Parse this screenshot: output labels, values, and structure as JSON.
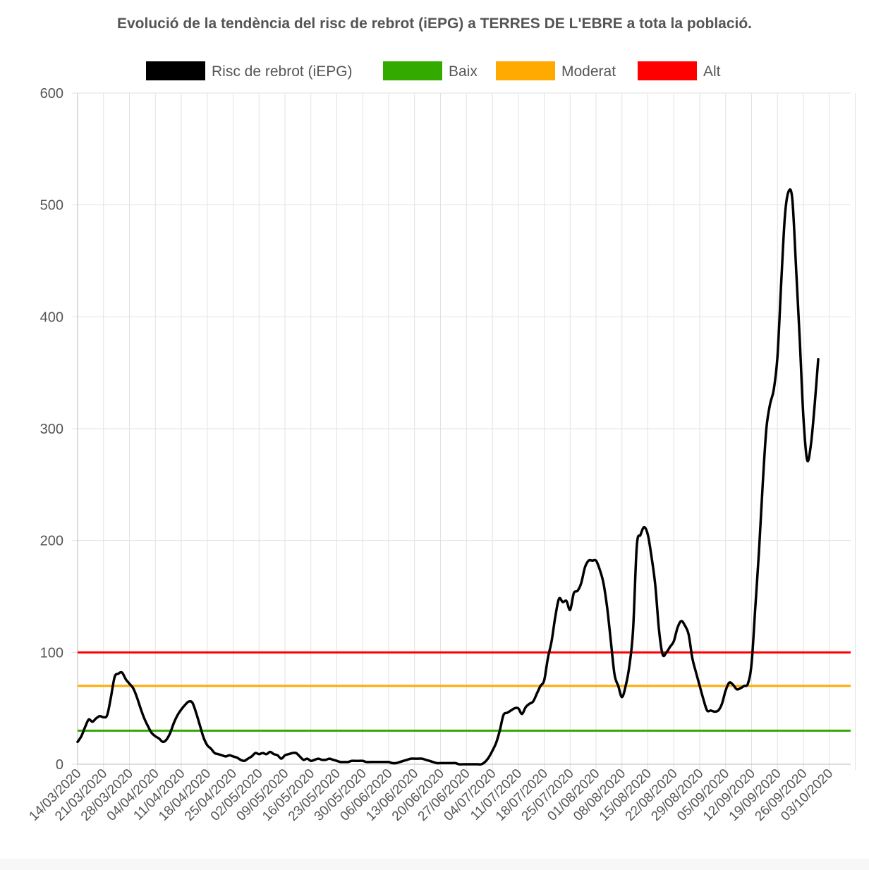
{
  "title": "Evolució de la tendència del risc de rebrot (iEPG) a TERRES DE L'EBRE a tota la població.",
  "legend": [
    {
      "label": "Risc de rebrot (iEPG)",
      "color": "#000000"
    },
    {
      "label": "Baix",
      "color": "#33aa00"
    },
    {
      "label": "Moderat",
      "color": "#ffaa00"
    },
    {
      "label": "Alt",
      "color": "#ff0000"
    }
  ],
  "chart_data": {
    "type": "line",
    "title": "Evolució de la tendència del risc de rebrot (iEPG) a TERRES DE L'EBRE a tota la població.",
    "xlabel": "",
    "ylabel": "",
    "ylim": [
      0,
      600
    ],
    "yticks": [
      0,
      100,
      200,
      300,
      400,
      500,
      600
    ],
    "grid": true,
    "legend_position": "top",
    "x_range": [
      "14/03/2020",
      "13/10/2020"
    ],
    "x_tick_labels": [
      "14/03/2020",
      "21/03/2020",
      "28/03/2020",
      "04/04/2020",
      "11/04/2020",
      "18/04/2020",
      "25/04/2020",
      "02/05/2020",
      "09/05/2020",
      "16/05/2020",
      "23/05/2020",
      "30/05/2020",
      "06/06/2020",
      "13/06/2020",
      "20/06/2020",
      "27/06/2020",
      "04/07/2020",
      "11/07/2020",
      "18/07/2020",
      "25/07/2020",
      "01/08/2020",
      "08/08/2020",
      "15/08/2020",
      "22/08/2020",
      "29/08/2020",
      "05/09/2020",
      "12/09/2020",
      "19/09/2020",
      "26/09/2020",
      "03/10/2020"
    ],
    "series": [
      {
        "name": "Risc de rebrot (iEPG)",
        "color": "#000000",
        "points": [
          [
            "14/03/2020",
            20
          ],
          [
            "15/03/2020",
            25
          ],
          [
            "16/03/2020",
            33
          ],
          [
            "17/03/2020",
            40
          ],
          [
            "18/03/2020",
            38
          ],
          [
            "19/03/2020",
            41
          ],
          [
            "20/03/2020",
            43
          ],
          [
            "21/03/2020",
            42
          ],
          [
            "22/03/2020",
            44
          ],
          [
            "23/03/2020",
            60
          ],
          [
            "24/03/2020",
            78
          ],
          [
            "25/03/2020",
            81
          ],
          [
            "26/03/2020",
            82
          ],
          [
            "27/03/2020",
            76
          ],
          [
            "28/03/2020",
            72
          ],
          [
            "29/03/2020",
            68
          ],
          [
            "30/03/2020",
            60
          ],
          [
            "31/03/2020",
            50
          ],
          [
            "01/04/2020",
            41
          ],
          [
            "02/04/2020",
            34
          ],
          [
            "03/04/2020",
            28
          ],
          [
            "04/04/2020",
            25
          ],
          [
            "05/04/2020",
            23
          ],
          [
            "06/04/2020",
            20
          ],
          [
            "07/04/2020",
            22
          ],
          [
            "08/04/2020",
            28
          ],
          [
            "09/04/2020",
            37
          ],
          [
            "10/04/2020",
            44
          ],
          [
            "11/04/2020",
            49
          ],
          [
            "12/04/2020",
            53
          ],
          [
            "13/04/2020",
            56
          ],
          [
            "14/04/2020",
            55
          ],
          [
            "15/04/2020",
            46
          ],
          [
            "16/04/2020",
            35
          ],
          [
            "17/04/2020",
            24
          ],
          [
            "18/04/2020",
            17
          ],
          [
            "19/04/2020",
            14
          ],
          [
            "20/04/2020",
            10
          ],
          [
            "21/04/2020",
            9
          ],
          [
            "22/04/2020",
            8
          ],
          [
            "23/04/2020",
            7
          ],
          [
            "24/04/2020",
            8
          ],
          [
            "25/04/2020",
            7
          ],
          [
            "26/04/2020",
            6
          ],
          [
            "27/04/2020",
            4
          ],
          [
            "28/04/2020",
            3
          ],
          [
            "29/04/2020",
            5
          ],
          [
            "30/04/2020",
            7
          ],
          [
            "01/05/2020",
            10
          ],
          [
            "02/05/2020",
            9
          ],
          [
            "03/05/2020",
            10
          ],
          [
            "04/05/2020",
            9
          ],
          [
            "05/05/2020",
            11
          ],
          [
            "06/05/2020",
            9
          ],
          [
            "07/05/2020",
            8
          ],
          [
            "08/05/2020",
            5
          ],
          [
            "09/05/2020",
            8
          ],
          [
            "10/05/2020",
            9
          ],
          [
            "11/05/2020",
            10
          ],
          [
            "12/05/2020",
            10
          ],
          [
            "13/05/2020",
            7
          ],
          [
            "14/05/2020",
            4
          ],
          [
            "15/05/2020",
            5
          ],
          [
            "16/05/2020",
            3
          ],
          [
            "17/05/2020",
            4
          ],
          [
            "18/05/2020",
            5
          ],
          [
            "19/05/2020",
            4
          ],
          [
            "20/05/2020",
            4
          ],
          [
            "21/05/2020",
            5
          ],
          [
            "22/05/2020",
            4
          ],
          [
            "23/05/2020",
            3
          ],
          [
            "24/05/2020",
            2
          ],
          [
            "25/05/2020",
            2
          ],
          [
            "26/05/2020",
            2
          ],
          [
            "27/05/2020",
            3
          ],
          [
            "28/05/2020",
            3
          ],
          [
            "29/05/2020",
            3
          ],
          [
            "30/05/2020",
            3
          ],
          [
            "31/05/2020",
            2
          ],
          [
            "01/06/2020",
            2
          ],
          [
            "02/06/2020",
            2
          ],
          [
            "03/06/2020",
            2
          ],
          [
            "04/06/2020",
            2
          ],
          [
            "05/06/2020",
            2
          ],
          [
            "06/06/2020",
            2
          ],
          [
            "07/06/2020",
            1
          ],
          [
            "08/06/2020",
            1
          ],
          [
            "09/06/2020",
            2
          ],
          [
            "10/06/2020",
            3
          ],
          [
            "11/06/2020",
            4
          ],
          [
            "12/06/2020",
            5
          ],
          [
            "13/06/2020",
            5
          ],
          [
            "14/06/2020",
            5
          ],
          [
            "15/06/2020",
            5
          ],
          [
            "16/06/2020",
            4
          ],
          [
            "17/06/2020",
            3
          ],
          [
            "18/06/2020",
            2
          ],
          [
            "19/06/2020",
            1
          ],
          [
            "20/06/2020",
            1
          ],
          [
            "21/06/2020",
            1
          ],
          [
            "22/06/2020",
            1
          ],
          [
            "23/06/2020",
            1
          ],
          [
            "24/06/2020",
            1
          ],
          [
            "25/06/2020",
            0
          ],
          [
            "26/06/2020",
            0
          ],
          [
            "27/06/2020",
            0
          ],
          [
            "28/06/2020",
            0
          ],
          [
            "29/06/2020",
            0
          ],
          [
            "30/06/2020",
            0
          ],
          [
            "01/07/2020",
            0
          ],
          [
            "02/07/2020",
            2
          ],
          [
            "03/07/2020",
            6
          ],
          [
            "04/07/2020",
            12
          ],
          [
            "05/07/2020",
            19
          ],
          [
            "06/07/2020",
            30
          ],
          [
            "07/07/2020",
            44
          ],
          [
            "08/07/2020",
            46
          ],
          [
            "09/07/2020",
            48
          ],
          [
            "10/07/2020",
            50
          ],
          [
            "11/07/2020",
            50
          ],
          [
            "12/07/2020",
            45
          ],
          [
            "13/07/2020",
            51
          ],
          [
            "14/07/2020",
            54
          ],
          [
            "15/07/2020",
            56
          ],
          [
            "16/07/2020",
            63
          ],
          [
            "17/07/2020",
            70
          ],
          [
            "18/07/2020",
            75
          ],
          [
            "19/07/2020",
            95
          ],
          [
            "20/07/2020",
            110
          ],
          [
            "21/07/2020",
            132
          ],
          [
            "22/07/2020",
            148
          ],
          [
            "23/07/2020",
            145
          ],
          [
            "24/07/2020",
            146
          ],
          [
            "25/07/2020",
            138
          ],
          [
            "26/07/2020",
            153
          ],
          [
            "27/07/2020",
            155
          ],
          [
            "28/07/2020",
            162
          ],
          [
            "29/07/2020",
            176
          ],
          [
            "30/07/2020",
            182
          ],
          [
            "31/07/2020",
            182
          ],
          [
            "01/08/2020",
            182
          ],
          [
            "02/08/2020",
            174
          ],
          [
            "03/08/2020",
            162
          ],
          [
            "04/08/2020",
            140
          ],
          [
            "05/08/2020",
            110
          ],
          [
            "06/08/2020",
            80
          ],
          [
            "07/08/2020",
            70
          ],
          [
            "08/08/2020",
            60
          ],
          [
            "09/08/2020",
            70
          ],
          [
            "10/08/2020",
            88
          ],
          [
            "11/08/2020",
            120
          ],
          [
            "12/08/2020",
            195
          ],
          [
            "13/08/2020",
            205
          ],
          [
            "14/08/2020",
            212
          ],
          [
            "15/08/2020",
            205
          ],
          [
            "16/08/2020",
            185
          ],
          [
            "17/08/2020",
            160
          ],
          [
            "18/08/2020",
            120
          ],
          [
            "19/08/2020",
            98
          ],
          [
            "20/08/2020",
            100
          ],
          [
            "21/08/2020",
            105
          ],
          [
            "22/08/2020",
            110
          ],
          [
            "23/08/2020",
            122
          ],
          [
            "24/08/2020",
            128
          ],
          [
            "25/08/2020",
            124
          ],
          [
            "26/08/2020",
            116
          ],
          [
            "27/08/2020",
            95
          ],
          [
            "28/08/2020",
            82
          ],
          [
            "29/08/2020",
            70
          ],
          [
            "30/08/2020",
            58
          ],
          [
            "31/08/2020",
            48
          ],
          [
            "01/09/2020",
            48
          ],
          [
            "02/09/2020",
            47
          ],
          [
            "03/09/2020",
            48
          ],
          [
            "04/09/2020",
            54
          ],
          [
            "05/09/2020",
            66
          ],
          [
            "06/09/2020",
            73
          ],
          [
            "07/09/2020",
            71
          ],
          [
            "08/09/2020",
            67
          ],
          [
            "09/09/2020",
            68
          ],
          [
            "10/09/2020",
            70
          ],
          [
            "11/09/2020",
            72
          ],
          [
            "12/09/2020",
            90
          ],
          [
            "13/09/2020",
            140
          ],
          [
            "14/09/2020",
            190
          ],
          [
            "15/09/2020",
            250
          ],
          [
            "16/09/2020",
            300
          ],
          [
            "17/09/2020",
            322
          ],
          [
            "18/09/2020",
            335
          ],
          [
            "19/09/2020",
            365
          ],
          [
            "20/09/2020",
            430
          ],
          [
            "21/09/2020",
            490
          ],
          [
            "22/09/2020",
            512
          ],
          [
            "23/09/2020",
            505
          ],
          [
            "24/09/2020",
            445
          ],
          [
            "25/09/2020",
            380
          ],
          [
            "26/09/2020",
            310
          ],
          [
            "27/09/2020",
            272
          ],
          [
            "28/09/2020",
            285
          ],
          [
            "29/09/2020",
            320
          ],
          [
            "30/09/2020",
            362
          ]
        ]
      },
      {
        "name": "Baix",
        "color": "#33aa00",
        "constant": 30
      },
      {
        "name": "Moderat",
        "color": "#ffaa00",
        "constant": 70
      },
      {
        "name": "Alt",
        "color": "#ff0000",
        "constant": 100
      }
    ]
  }
}
